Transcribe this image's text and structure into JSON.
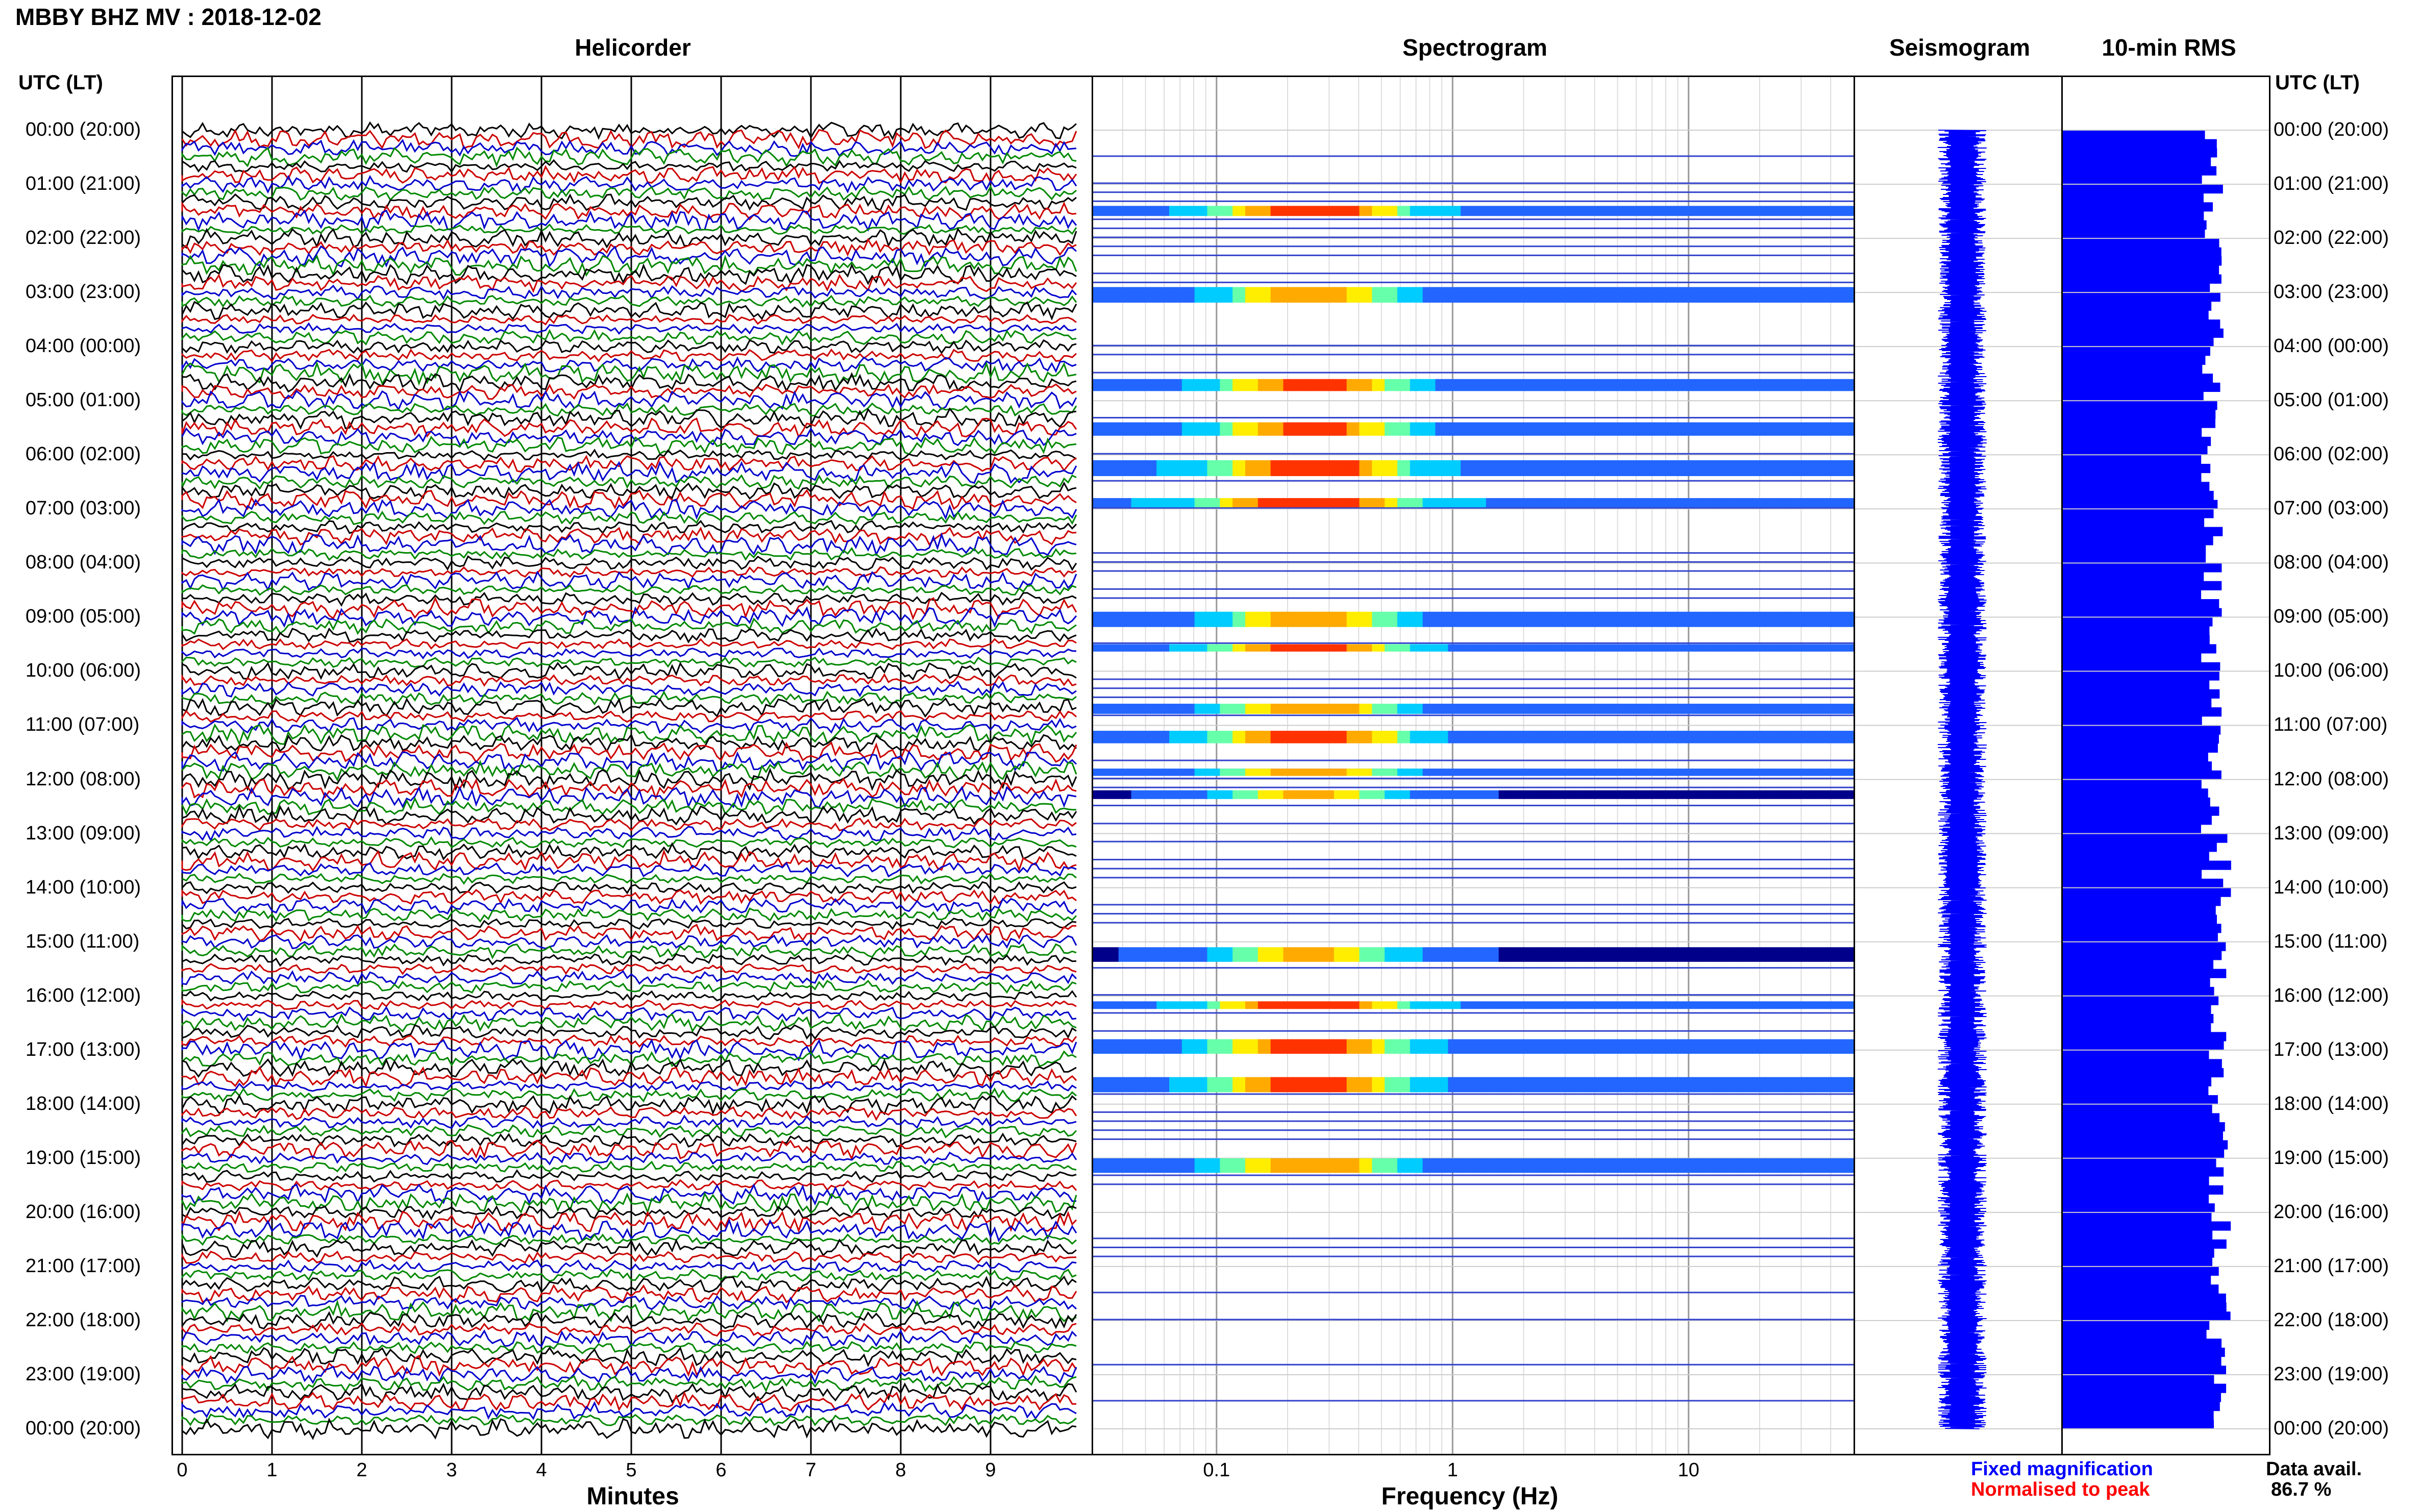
{
  "header": {
    "title": "MBBY BHZ MV : 2018-12-02",
    "utc_label_left": "UTC (LT)",
    "utc_label_right": "UTC (LT)"
  },
  "panels": {
    "helicorder": "Helicorder",
    "spectrogram": "Spectrogram",
    "seismogram": "Seismogram",
    "rms": "10-min RMS"
  },
  "time_labels": [
    "00:00 (20:00)",
    "01:00 (21:00)",
    "02:00 (22:00)",
    "03:00 (23:00)",
    "04:00 (00:00)",
    "05:00 (01:00)",
    "06:00 (02:00)",
    "07:00 (03:00)",
    "08:00 (04:00)",
    "09:00 (05:00)",
    "10:00 (06:00)",
    "11:00 (07:00)",
    "12:00 (08:00)",
    "13:00 (09:00)",
    "14:00 (10:00)",
    "15:00 (11:00)",
    "16:00 (12:00)",
    "17:00 (13:00)",
    "18:00 (14:00)",
    "19:00 (15:00)",
    "20:00 (16:00)",
    "21:00 (17:00)",
    "22:00 (18:00)",
    "23:00 (19:00)",
    "00:00 (20:00)"
  ],
  "helicorder_axis": {
    "ticks": [
      "0",
      "1",
      "2",
      "3",
      "4",
      "5",
      "6",
      "7",
      "8",
      "9"
    ],
    "label": "Minutes"
  },
  "spectrogram_axis": {
    "ticks": [
      "0.1",
      "1",
      "10"
    ],
    "label": "Frequency (Hz)",
    "scale": "log"
  },
  "legend": {
    "fixed": "Fixed magnification",
    "normalised": "Normalised to peak",
    "avail_label": "Data avail.",
    "avail_value": "86.7 %"
  },
  "colors": {
    "trace_cycle": [
      "#000000",
      "#cc0000",
      "#0000cc",
      "#008800"
    ],
    "rms_bar": "#0000ff",
    "seismogram": "#0000ff",
    "spectrogram_low": "#00008b",
    "spectrogram_high": "#ff3300"
  },
  "chart_data": [
    {
      "type": "heatmap",
      "title": "Helicorder",
      "xlabel": "Minutes",
      "xlim": [
        0,
        10
      ],
      "ylim_hours_utc": [
        0,
        24
      ],
      "lines_per_hour": 6,
      "colors": [
        "#000000",
        "#cc0000",
        "#0000cc",
        "#008800"
      ]
    },
    {
      "type": "heatmap",
      "title": "Spectrogram",
      "xlabel": "Frequency (Hz)",
      "x_scale": "log",
      "xlim": [
        0.03,
        50
      ],
      "strong_bands_utc_hours": [
        1.4,
        2.9,
        4.6,
        5.4,
        6.1,
        6.8,
        8.9,
        9.5,
        10.6,
        11.1,
        11.8,
        12.2,
        15.1,
        16.1,
        16.8,
        17.5,
        19.0
      ]
    },
    {
      "type": "line",
      "title": "Seismogram",
      "ylim_hours_utc": [
        0,
        24
      ]
    },
    {
      "type": "bar",
      "title": "10-min RMS",
      "orientation": "horizontal",
      "bins_per_hour": 6,
      "ylim_hours_utc": [
        0,
        24
      ]
    }
  ]
}
